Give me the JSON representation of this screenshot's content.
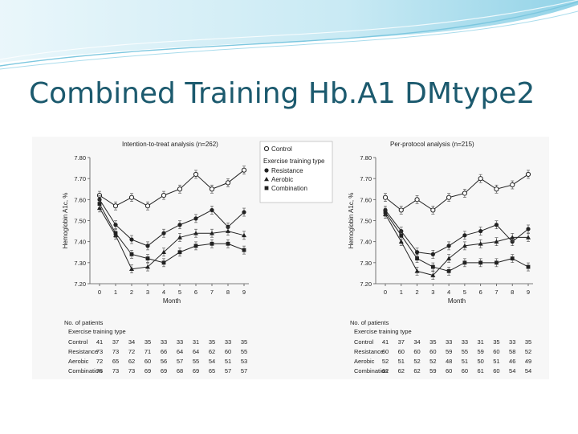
{
  "slide": {
    "title": "Combined Training Hb.A1 DMtype2"
  },
  "colors": {
    "accent": "#1c5a6e",
    "banner_light": "#d6eef5",
    "banner_mid": "#8fd0e6"
  },
  "legend": {
    "control": "Control",
    "group_header": "Exercise training type",
    "resistance": "Resistance",
    "aerobic": "Aerobic",
    "combination": "Combination"
  },
  "chart_data": [
    {
      "type": "line",
      "title": "Intention-to-treat analysis (n=262)",
      "xlabel": "Month",
      "ylabel": "Hemoglobin A1c, %",
      "x": [
        0,
        1,
        2,
        3,
        4,
        5,
        6,
        7,
        8,
        9
      ],
      "ylim": [
        7.2,
        7.8
      ],
      "yticks": [
        "7.80",
        "7.70",
        "7.60",
        "7.50",
        "7.40",
        "7.30",
        "7.20"
      ],
      "series": [
        {
          "name": "Control",
          "marker": "open-circle",
          "values": [
            7.62,
            7.57,
            7.61,
            7.57,
            7.62,
            7.65,
            7.72,
            7.65,
            7.68,
            7.74
          ]
        },
        {
          "name": "Resistance",
          "marker": "filled-circle",
          "values": [
            7.6,
            7.48,
            7.41,
            7.38,
            7.44,
            7.48,
            7.51,
            7.55,
            7.47,
            7.54
          ]
        },
        {
          "name": "Aerobic",
          "marker": "filled-triangle",
          "values": [
            7.56,
            7.43,
            7.27,
            7.28,
            7.35,
            7.42,
            7.44,
            7.44,
            7.45,
            7.43
          ]
        },
        {
          "name": "Combination",
          "marker": "filled-square",
          "values": [
            7.58,
            7.44,
            7.34,
            7.32,
            7.3,
            7.35,
            7.38,
            7.39,
            7.39,
            7.36
          ]
        }
      ],
      "patients": {
        "title": "No. of patients",
        "subtitle": "Exercise training type",
        "rows": [
          {
            "label": "Control",
            "values": [
              "41",
              "37",
              "34",
              "35",
              "33",
              "33",
              "31",
              "35",
              "33",
              "35"
            ]
          },
          {
            "label": "Resistance",
            "values": [
              "73",
              "73",
              "72",
              "71",
              "66",
              "64",
              "64",
              "62",
              "60",
              "55"
            ]
          },
          {
            "label": "Aerobic",
            "values": [
              "72",
              "65",
              "62",
              "60",
              "56",
              "57",
              "55",
              "54",
              "51",
              "53"
            ]
          },
          {
            "label": "Combination",
            "values": [
              "76",
              "73",
              "73",
              "69",
              "69",
              "68",
              "69",
              "65",
              "57",
              "57"
            ]
          }
        ]
      }
    },
    {
      "type": "line",
      "title": "Per-protocol analysis (n=215)",
      "xlabel": "Month",
      "ylabel": "Hemoglobin A1c, %",
      "x": [
        0,
        1,
        2,
        3,
        4,
        5,
        6,
        7,
        8,
        9
      ],
      "ylim": [
        7.2,
        7.8
      ],
      "yticks": [
        "7.80",
        "7.70",
        "7.60",
        "7.50",
        "7.40",
        "7.30",
        "7.20"
      ],
      "series": [
        {
          "name": "Control",
          "marker": "open-circle",
          "values": [
            7.61,
            7.55,
            7.6,
            7.55,
            7.61,
            7.63,
            7.7,
            7.65,
            7.67,
            7.72
          ]
        },
        {
          "name": "Resistance",
          "marker": "filled-circle",
          "values": [
            7.55,
            7.45,
            7.35,
            7.34,
            7.38,
            7.43,
            7.45,
            7.48,
            7.4,
            7.46
          ]
        },
        {
          "name": "Aerobic",
          "marker": "filled-triangle",
          "values": [
            7.53,
            7.4,
            7.26,
            7.24,
            7.32,
            7.38,
            7.39,
            7.4,
            7.42,
            7.42
          ]
        },
        {
          "name": "Combination",
          "marker": "filled-square",
          "values": [
            7.54,
            7.43,
            7.32,
            7.28,
            7.26,
            7.3,
            7.3,
            7.3,
            7.32,
            7.28
          ]
        }
      ],
      "patients": {
        "title": "No. of patients",
        "subtitle": "Exercise training type",
        "rows": [
          {
            "label": "Control",
            "values": [
              "41",
              "37",
              "34",
              "35",
              "33",
              "33",
              "31",
              "35",
              "33",
              "35"
            ]
          },
          {
            "label": "Resistance",
            "values": [
              "60",
              "60",
              "60",
              "60",
              "59",
              "55",
              "59",
              "60",
              "58",
              "52"
            ]
          },
          {
            "label": "Aerobic",
            "values": [
              "52",
              "51",
              "52",
              "52",
              "48",
              "51",
              "50",
              "51",
              "46",
              "49"
            ]
          },
          {
            "label": "Combination",
            "values": [
              "62",
              "62",
              "62",
              "59",
              "60",
              "60",
              "61",
              "60",
              "54",
              "54"
            ]
          }
        ]
      }
    }
  ]
}
